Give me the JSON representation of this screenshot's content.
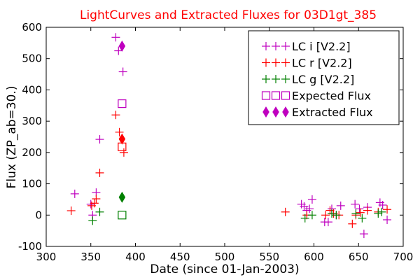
{
  "chart_data": {
    "type": "scatter",
    "title": "LightCurves and Extracted Fluxes for 03D1gt_385",
    "xlabel": "Date (since 01-Jan-2003)",
    "ylabel": "Flux (ZP_ab=30.)",
    "xlim": [
      300,
      700
    ],
    "ylim": [
      -100,
      600
    ],
    "x_ticks": [
      "300",
      "350",
      "400",
      "450",
      "500",
      "550",
      "600",
      "650",
      "700"
    ],
    "y_ticks": [
      "-100",
      "0",
      "100",
      "200",
      "300",
      "400",
      "500",
      "600"
    ],
    "grid": false,
    "legend_position": "top-right",
    "series": [
      {
        "name": "LC i [V2.2]",
        "marker": "plus",
        "color": "#bf00bf",
        "points": [
          [
            332,
            68
          ],
          [
            350,
            35
          ],
          [
            352,
            0
          ],
          [
            356,
            72
          ],
          [
            360,
            242
          ],
          [
            378,
            568
          ],
          [
            381,
            525
          ],
          [
            386,
            458
          ],
          [
            586,
            35
          ],
          [
            589,
            28
          ],
          [
            592,
            15
          ],
          [
            595,
            20
          ],
          [
            598,
            50
          ],
          [
            612,
            -22
          ],
          [
            616,
            -22
          ],
          [
            620,
            20
          ],
          [
            625,
            0
          ],
          [
            630,
            30
          ],
          [
            646,
            35
          ],
          [
            651,
            20
          ],
          [
            656,
            -60
          ],
          [
            660,
            25
          ],
          [
            674,
            40
          ],
          [
            677,
            32
          ],
          [
            682,
            -15
          ]
        ]
      },
      {
        "name": "LC r [V2.2]",
        "marker": "plus",
        "color": "#ff0000",
        "points": [
          [
            328,
            14
          ],
          [
            351,
            30
          ],
          [
            354,
            38
          ],
          [
            356,
            52
          ],
          [
            360,
            135
          ],
          [
            378,
            320
          ],
          [
            382,
            265
          ],
          [
            387,
            200
          ],
          [
            568,
            10
          ],
          [
            592,
            0
          ],
          [
            613,
            0
          ],
          [
            618,
            15
          ],
          [
            622,
            5
          ],
          [
            628,
            0
          ],
          [
            643,
            -28
          ],
          [
            647,
            0
          ],
          [
            652,
            8
          ],
          [
            660,
            15
          ],
          [
            672,
            10
          ],
          [
            682,
            18
          ]
        ]
      },
      {
        "name": "LC g [V2.2]",
        "marker": "plus",
        "color": "#008000",
        "points": [
          [
            352,
            -18
          ],
          [
            360,
            10
          ],
          [
            590,
            -10
          ],
          [
            598,
            0
          ],
          [
            620,
            5
          ],
          [
            625,
            0
          ],
          [
            647,
            5
          ],
          [
            654,
            -10
          ],
          [
            672,
            5
          ],
          [
            676,
            10
          ]
        ]
      },
      {
        "name": "Expected Flux",
        "marker": "square",
        "color": "#bf00bf",
        "points": [
          [
            385,
            356
          ],
          [
            385,
            218
          ],
          [
            385,
            0
          ]
        ],
        "point_colors": [
          "#bf00bf",
          "#ff0000",
          "#008000"
        ]
      },
      {
        "name": "Extracted Flux",
        "marker": "diamond",
        "color": "#bf00bf",
        "points": [
          [
            385,
            540
          ],
          [
            385,
            243
          ],
          [
            385,
            57
          ]
        ],
        "point_colors": [
          "#bf00bf",
          "#ff0000",
          "#008000"
        ]
      }
    ]
  }
}
